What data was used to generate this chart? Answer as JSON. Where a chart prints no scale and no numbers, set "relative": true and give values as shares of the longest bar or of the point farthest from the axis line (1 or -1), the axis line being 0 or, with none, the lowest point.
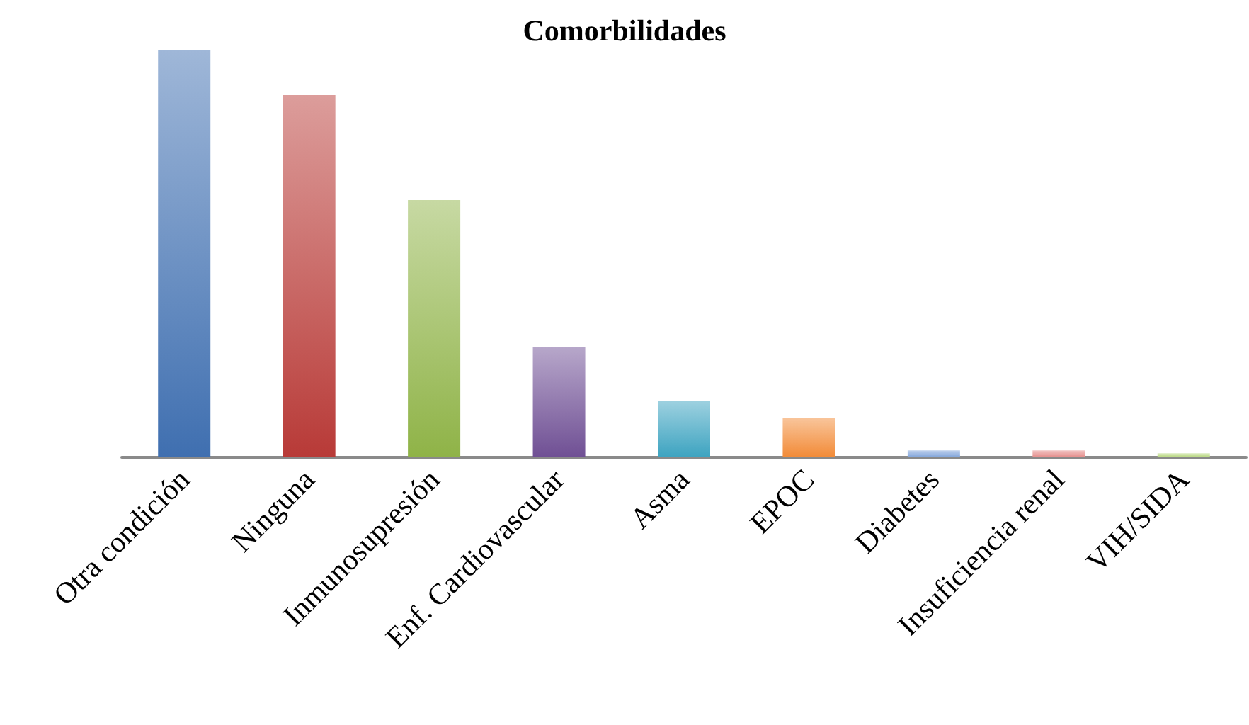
{
  "chart_data": {
    "type": "bar",
    "title": "Comorbilidades",
    "relative": true,
    "categories": [
      "Otra condición",
      "Ninguna",
      "Inmunosupresión",
      "Enf. Cardiovascular",
      "Asma",
      "EPOC",
      "Diabetes",
      "Insuficiencia renal",
      "VIH/SIDA"
    ],
    "values": [
      1,
      0.889,
      0.632,
      0.271,
      0.139,
      0.097,
      0.017,
      0.017,
      0.01
    ],
    "colors": [
      "#3f6fb0",
      "#b83a37",
      "#8fb347",
      "#6f4f94",
      "#3ca3c0",
      "#f28a36",
      "#7fa3da",
      "#e48a88",
      "#b5d67a"
    ]
  }
}
